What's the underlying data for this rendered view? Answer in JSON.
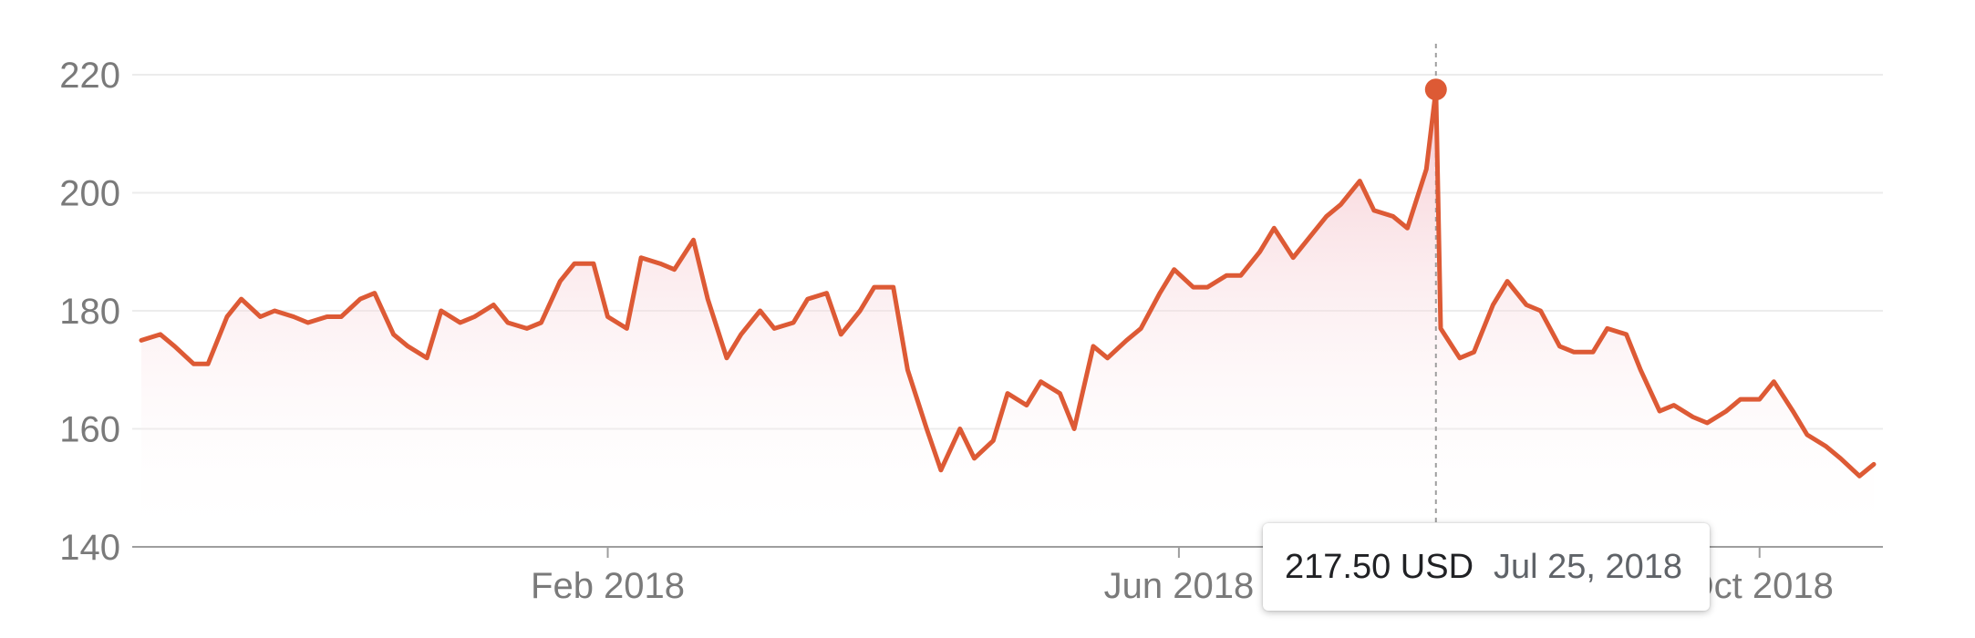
{
  "colors": {
    "line": "#dd5a35",
    "fill_top": "#f3b9c2",
    "grid": "#ececec",
    "axis": "#9e9e9e",
    "text": "#7a7a7a"
  },
  "tooltip": {
    "price": "217.50 USD",
    "date": "Jul 25, 2018"
  },
  "chart_data": {
    "type": "line",
    "title": "",
    "xlabel": "",
    "ylabel": "",
    "ylim": [
      140,
      220
    ],
    "y_ticks": [
      220,
      200,
      180,
      160,
      140
    ],
    "x_tick_labels": [
      "Feb 2018",
      "Jun 2018",
      "Oct 2018"
    ],
    "grid": true,
    "highlight": {
      "date": "2018-07-25",
      "value": 217.5
    },
    "series": [
      {
        "x": [
          "2017-10-26",
          "2017-10-30",
          "2017-11-02",
          "2017-11-06",
          "2017-11-09",
          "2017-11-13",
          "2017-11-16",
          "2017-11-20",
          "2017-11-23",
          "2017-11-27",
          "2017-11-30",
          "2017-12-04",
          "2017-12-07",
          "2017-12-11",
          "2017-12-14",
          "2017-12-18",
          "2017-12-21",
          "2017-12-25",
          "2017-12-28",
          "2018-01-01",
          "2018-01-04",
          "2018-01-08",
          "2018-01-11",
          "2018-01-15",
          "2018-01-18",
          "2018-01-22",
          "2018-01-25",
          "2018-01-29",
          "2018-02-01",
          "2018-02-05",
          "2018-02-08",
          "2018-02-12",
          "2018-02-15",
          "2018-02-19",
          "2018-02-22",
          "2018-02-26",
          "2018-03-01",
          "2018-03-05",
          "2018-03-08",
          "2018-03-12",
          "2018-03-15",
          "2018-03-19",
          "2018-03-22",
          "2018-03-26",
          "2018-03-29",
          "2018-04-02",
          "2018-04-05",
          "2018-04-09",
          "2018-04-12",
          "2018-04-16",
          "2018-04-19",
          "2018-04-23",
          "2018-04-26",
          "2018-04-30",
          "2018-05-03",
          "2018-05-07",
          "2018-05-10",
          "2018-05-14",
          "2018-05-17",
          "2018-05-21",
          "2018-05-24",
          "2018-05-28",
          "2018-05-31",
          "2018-06-04",
          "2018-06-07",
          "2018-06-11",
          "2018-06-14",
          "2018-06-18",
          "2018-06-21",
          "2018-06-25",
          "2018-06-28",
          "2018-07-02",
          "2018-07-05",
          "2018-07-09",
          "2018-07-12",
          "2018-07-16",
          "2018-07-19",
          "2018-07-23",
          "2018-07-25",
          "2018-07-26",
          "2018-07-30",
          "2018-08-02",
          "2018-08-06",
          "2018-08-09",
          "2018-08-13",
          "2018-08-16",
          "2018-08-20",
          "2018-08-23",
          "2018-08-27",
          "2018-08-30",
          "2018-09-03",
          "2018-09-06",
          "2018-09-10",
          "2018-09-13",
          "2018-09-17",
          "2018-09-20",
          "2018-09-24",
          "2018-09-27",
          "2018-10-01",
          "2018-10-04",
          "2018-10-08",
          "2018-10-11",
          "2018-10-15",
          "2018-10-18",
          "2018-10-22",
          "2018-10-25"
        ],
        "values": [
          175,
          176,
          174,
          171,
          171,
          179,
          182,
          179,
          180,
          179,
          178,
          179,
          179,
          182,
          183,
          176,
          174,
          172,
          180,
          178,
          179,
          181,
          178,
          177,
          178,
          185,
          188,
          188,
          179,
          177,
          189,
          188,
          187,
          192,
          182,
          172,
          176,
          180,
          177,
          178,
          182,
          183,
          176,
          180,
          184,
          184,
          170,
          160,
          153,
          160,
          155,
          158,
          166,
          164,
          168,
          166,
          160,
          174,
          172,
          175,
          177,
          183,
          187,
          184,
          184,
          186,
          186,
          190,
          194,
          189,
          192,
          196,
          198,
          202,
          197,
          196,
          194,
          204,
          217.5,
          177,
          172,
          173,
          181,
          185,
          181,
          180,
          174,
          173,
          173,
          177,
          176,
          170,
          163,
          164,
          162,
          161,
          163,
          165,
          165,
          168,
          163,
          159,
          157,
          155,
          152,
          154
        ]
      }
    ]
  }
}
